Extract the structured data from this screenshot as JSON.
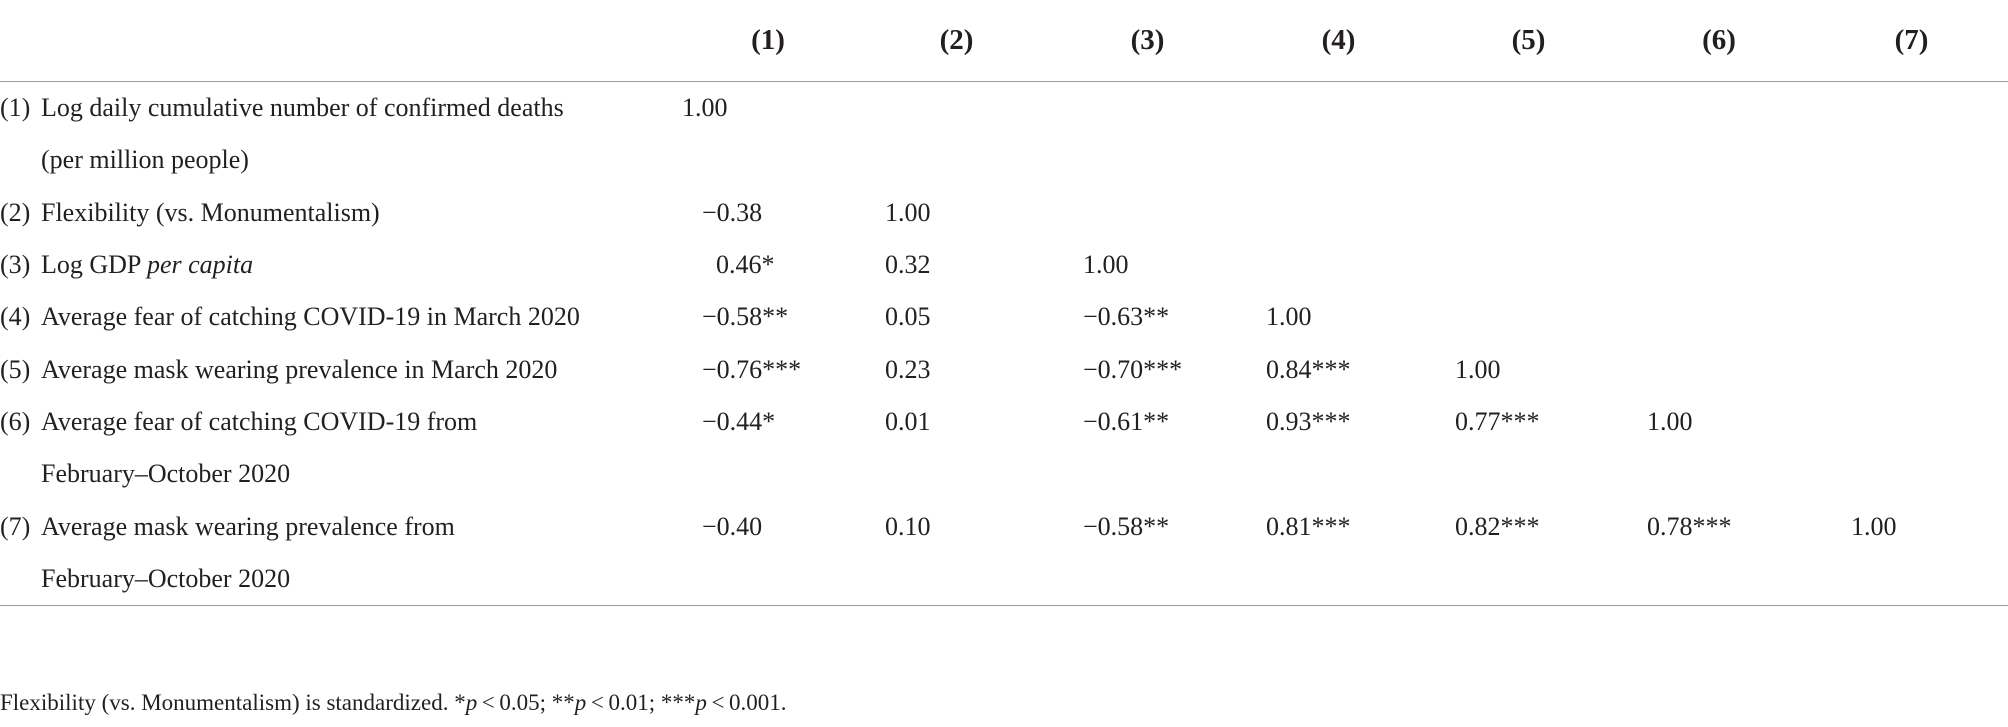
{
  "columns": [
    "(1)",
    "(2)",
    "(3)",
    "(4)",
    "(5)",
    "(6)",
    "(7)"
  ],
  "rows": [
    {
      "num": "(1)",
      "label_line1": "Log daily cumulative number of confirmed deaths",
      "label_line2": "(per million people)",
      "values": [
        "1.00",
        "",
        "",
        "",
        "",
        "",
        ""
      ]
    },
    {
      "num": "(2)",
      "label_line1": "Flexibility (vs. Monumentalism)",
      "values": [
        "−0.38",
        "1.00",
        "",
        "",
        "",
        "",
        ""
      ]
    },
    {
      "num": "(3)",
      "label_prefix": "Log GDP ",
      "label_italic": "per capita",
      "values": [
        "0.46*",
        "0.32",
        "1.00",
        "",
        "",
        "",
        ""
      ]
    },
    {
      "num": "(4)",
      "label_line1": "Average fear of catching COVID-19 in March 2020",
      "values": [
        "−0.58**",
        "0.05",
        "−0.63**",
        "1.00",
        "",
        "",
        ""
      ]
    },
    {
      "num": "(5)",
      "label_line1": "Average mask wearing prevalence in March 2020",
      "values": [
        "−0.76***",
        "0.23",
        "−0.70***",
        "0.84***",
        "1.00",
        "",
        ""
      ]
    },
    {
      "num": "(6)",
      "label_line1": "Average fear of catching COVID-19 from",
      "label_line2": "February–October 2020",
      "values": [
        "−0.44*",
        "0.01",
        "−0.61**",
        "0.93***",
        "0.77***",
        "1.00",
        ""
      ]
    },
    {
      "num": "(7)",
      "label_line1": "Average mask wearing prevalence from",
      "label_line2": "February–October 2020",
      "values": [
        "−0.40",
        "0.10",
        "−0.58**",
        "0.81***",
        "0.82***",
        "0.78***",
        "1.00"
      ]
    }
  ],
  "footnote": {
    "lead": "Flexibility (vs. Monumentalism) is standardized. *",
    "p1": "p",
    "t1": " < 0.05; **",
    "p2": "p",
    "t2": " < 0.01; ***",
    "p3": "p",
    "t3": " < 0.001."
  }
}
